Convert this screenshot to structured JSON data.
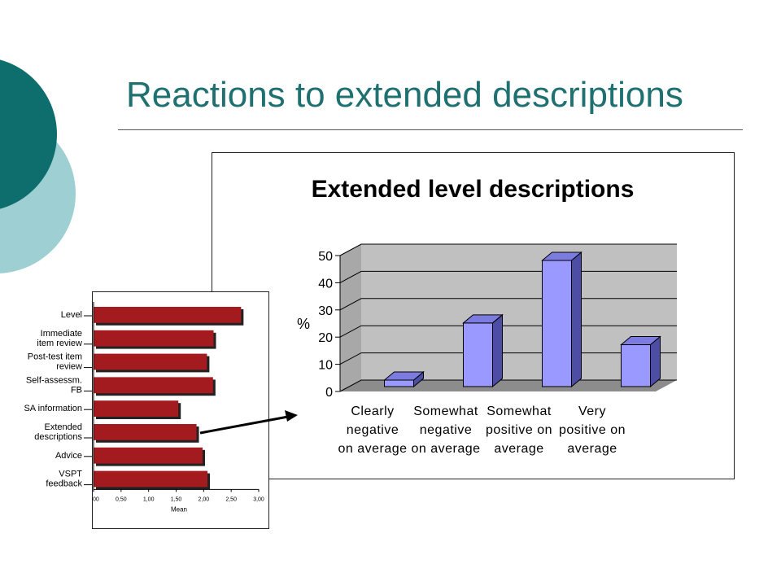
{
  "slide": {
    "title": "Reactions to extended descriptions"
  },
  "colors": {
    "accent_dark": "#0e6e6e",
    "accent_light": "#9ecfd2",
    "title_text": "#1f7070",
    "bar_main_front": "#9999ff",
    "bar_main_side": "#4d4da6",
    "bar_main_top": "#7b7be0",
    "bar_inset": "#a31a1f",
    "wall": "#c0c0c0",
    "floor": "#8c8c8c"
  },
  "chart_data": [
    {
      "type": "bar",
      "title": "Extended level descriptions",
      "ylabel": "%",
      "xlabel": "",
      "categories": [
        [
          "Clearly",
          "negative",
          "on average"
        ],
        [
          "Somewhat",
          "negative",
          "on average"
        ],
        [
          "Somewhat",
          "positive on",
          "average"
        ],
        [
          "Very",
          "positive on",
          "average"
        ]
      ],
      "values": [
        6,
        27,
        50,
        19
      ],
      "ylim": [
        0,
        50
      ],
      "yticks": [
        "0",
        "10",
        "20",
        "30",
        "40",
        "50"
      ],
      "grid": true,
      "legend": "none"
    },
    {
      "type": "bar",
      "orientation": "horizontal",
      "title": "",
      "xlabel": "Mean",
      "ylabel": "",
      "categories": [
        [
          "Level"
        ],
        [
          "Immediate",
          "item review"
        ],
        [
          "Post-test item",
          "review"
        ],
        [
          "Self-assessm.",
          "FB"
        ],
        [
          "SA information"
        ],
        [
          "Extended",
          "descriptions"
        ],
        [
          "Advice"
        ],
        [
          "VSPT",
          "feedback"
        ]
      ],
      "values": [
        2.68,
        2.18,
        2.06,
        2.17,
        1.54,
        1.87,
        1.98,
        2.07
      ],
      "xlim": [
        0,
        3
      ],
      "xticks": [
        "0,00",
        "0,50",
        "1,00",
        "1,50",
        "2,00",
        "2,50",
        "3,00"
      ],
      "legend": "none"
    }
  ]
}
